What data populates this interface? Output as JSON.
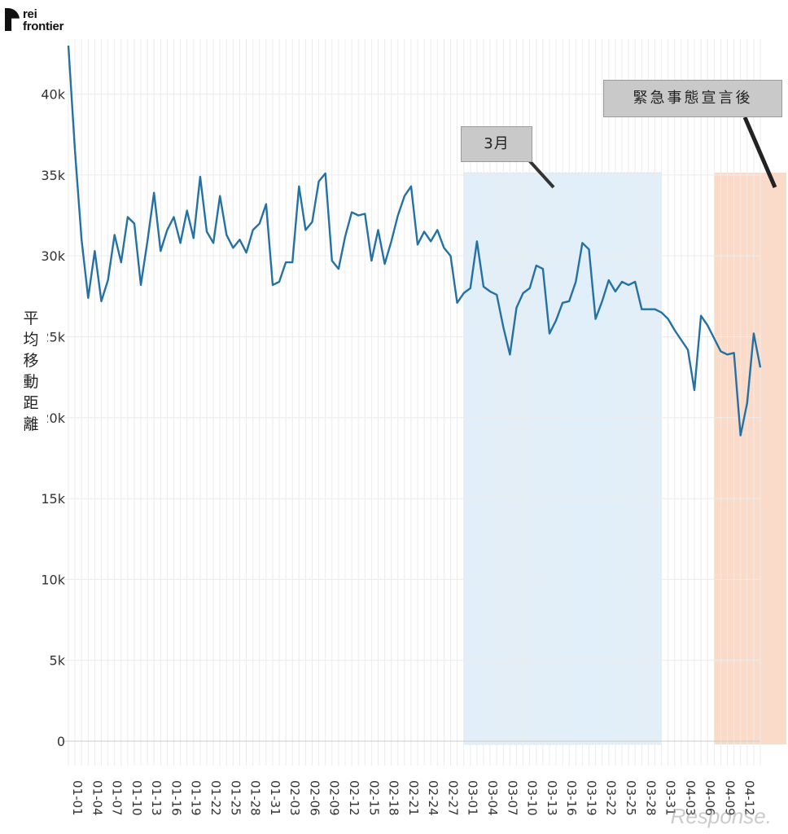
{
  "brand": {
    "line1": "rei",
    "line2": "frontier"
  },
  "watermark": "Response.",
  "chart_data": {
    "type": "line",
    "title": "",
    "xlabel": "",
    "ylabel": "平均移動距離",
    "ylim": [
      0,
      43000
    ],
    "yticks": [
      0,
      5000,
      10000,
      15000,
      20000,
      25000,
      30000,
      35000,
      40000
    ],
    "ytick_labels": [
      "0",
      "5k",
      "10k",
      "15k",
      "20k",
      "25k",
      "30k",
      "35k",
      "40k"
    ],
    "grid": true,
    "x_tick_labels": [
      "01-01",
      "01-04",
      "01-07",
      "01-10",
      "01-13",
      "01-16",
      "01-19",
      "01-22",
      "01-25",
      "01-28",
      "01-31",
      "02-03",
      "02-06",
      "02-09",
      "02-12",
      "02-15",
      "02-18",
      "02-21",
      "02-24",
      "02-27",
      "03-01",
      "03-04",
      "03-07",
      "03-10",
      "03-13",
      "03-16",
      "03-19",
      "03-22",
      "03-25",
      "03-28",
      "03-31",
      "04-03",
      "04-06",
      "04-09",
      "04-12"
    ],
    "series": [
      {
        "color": "#2471a3",
        "start_date": "01-01",
        "values": [
          43000,
          36500,
          31000,
          27400,
          30300,
          27200,
          28500,
          31300,
          29600,
          32400,
          32000,
          28200,
          30900,
          33900,
          30300,
          31600,
          32400,
          30800,
          32800,
          31100,
          34900,
          31500,
          30800,
          33700,
          31300,
          30500,
          31000,
          30200,
          31600,
          32000,
          33200,
          28200,
          28400,
          29600,
          29600,
          34300,
          31600,
          32100,
          34600,
          35100,
          29700,
          29200,
          31200,
          32700,
          32500,
          32600,
          29700,
          31600,
          29500,
          30900,
          32500,
          33700,
          34300,
          30700,
          31500,
          30900,
          31600,
          30500,
          30000,
          27100,
          27700,
          28000,
          30900,
          28100,
          27800,
          27600,
          25600,
          23900,
          26800,
          27700,
          28000,
          29400,
          29200,
          25200,
          26000,
          27100,
          27200,
          28400,
          30800,
          30400,
          26100,
          27200,
          28500,
          27800,
          28400,
          28200,
          28400,
          26700,
          26700,
          26700,
          26500,
          26100,
          25400,
          24800,
          24200,
          21700,
          26300,
          25700,
          24900,
          24100,
          23900,
          24000,
          18900,
          20900,
          25200,
          23100
        ]
      }
    ],
    "highlights": [
      {
        "label": "3月",
        "from": "03-01",
        "to": "03-31",
        "color": "#d6eaf8"
      },
      {
        "label": "緊急事態宣言後",
        "from": "04-08",
        "to": "04-15",
        "color": "#fad7c4"
      }
    ]
  }
}
